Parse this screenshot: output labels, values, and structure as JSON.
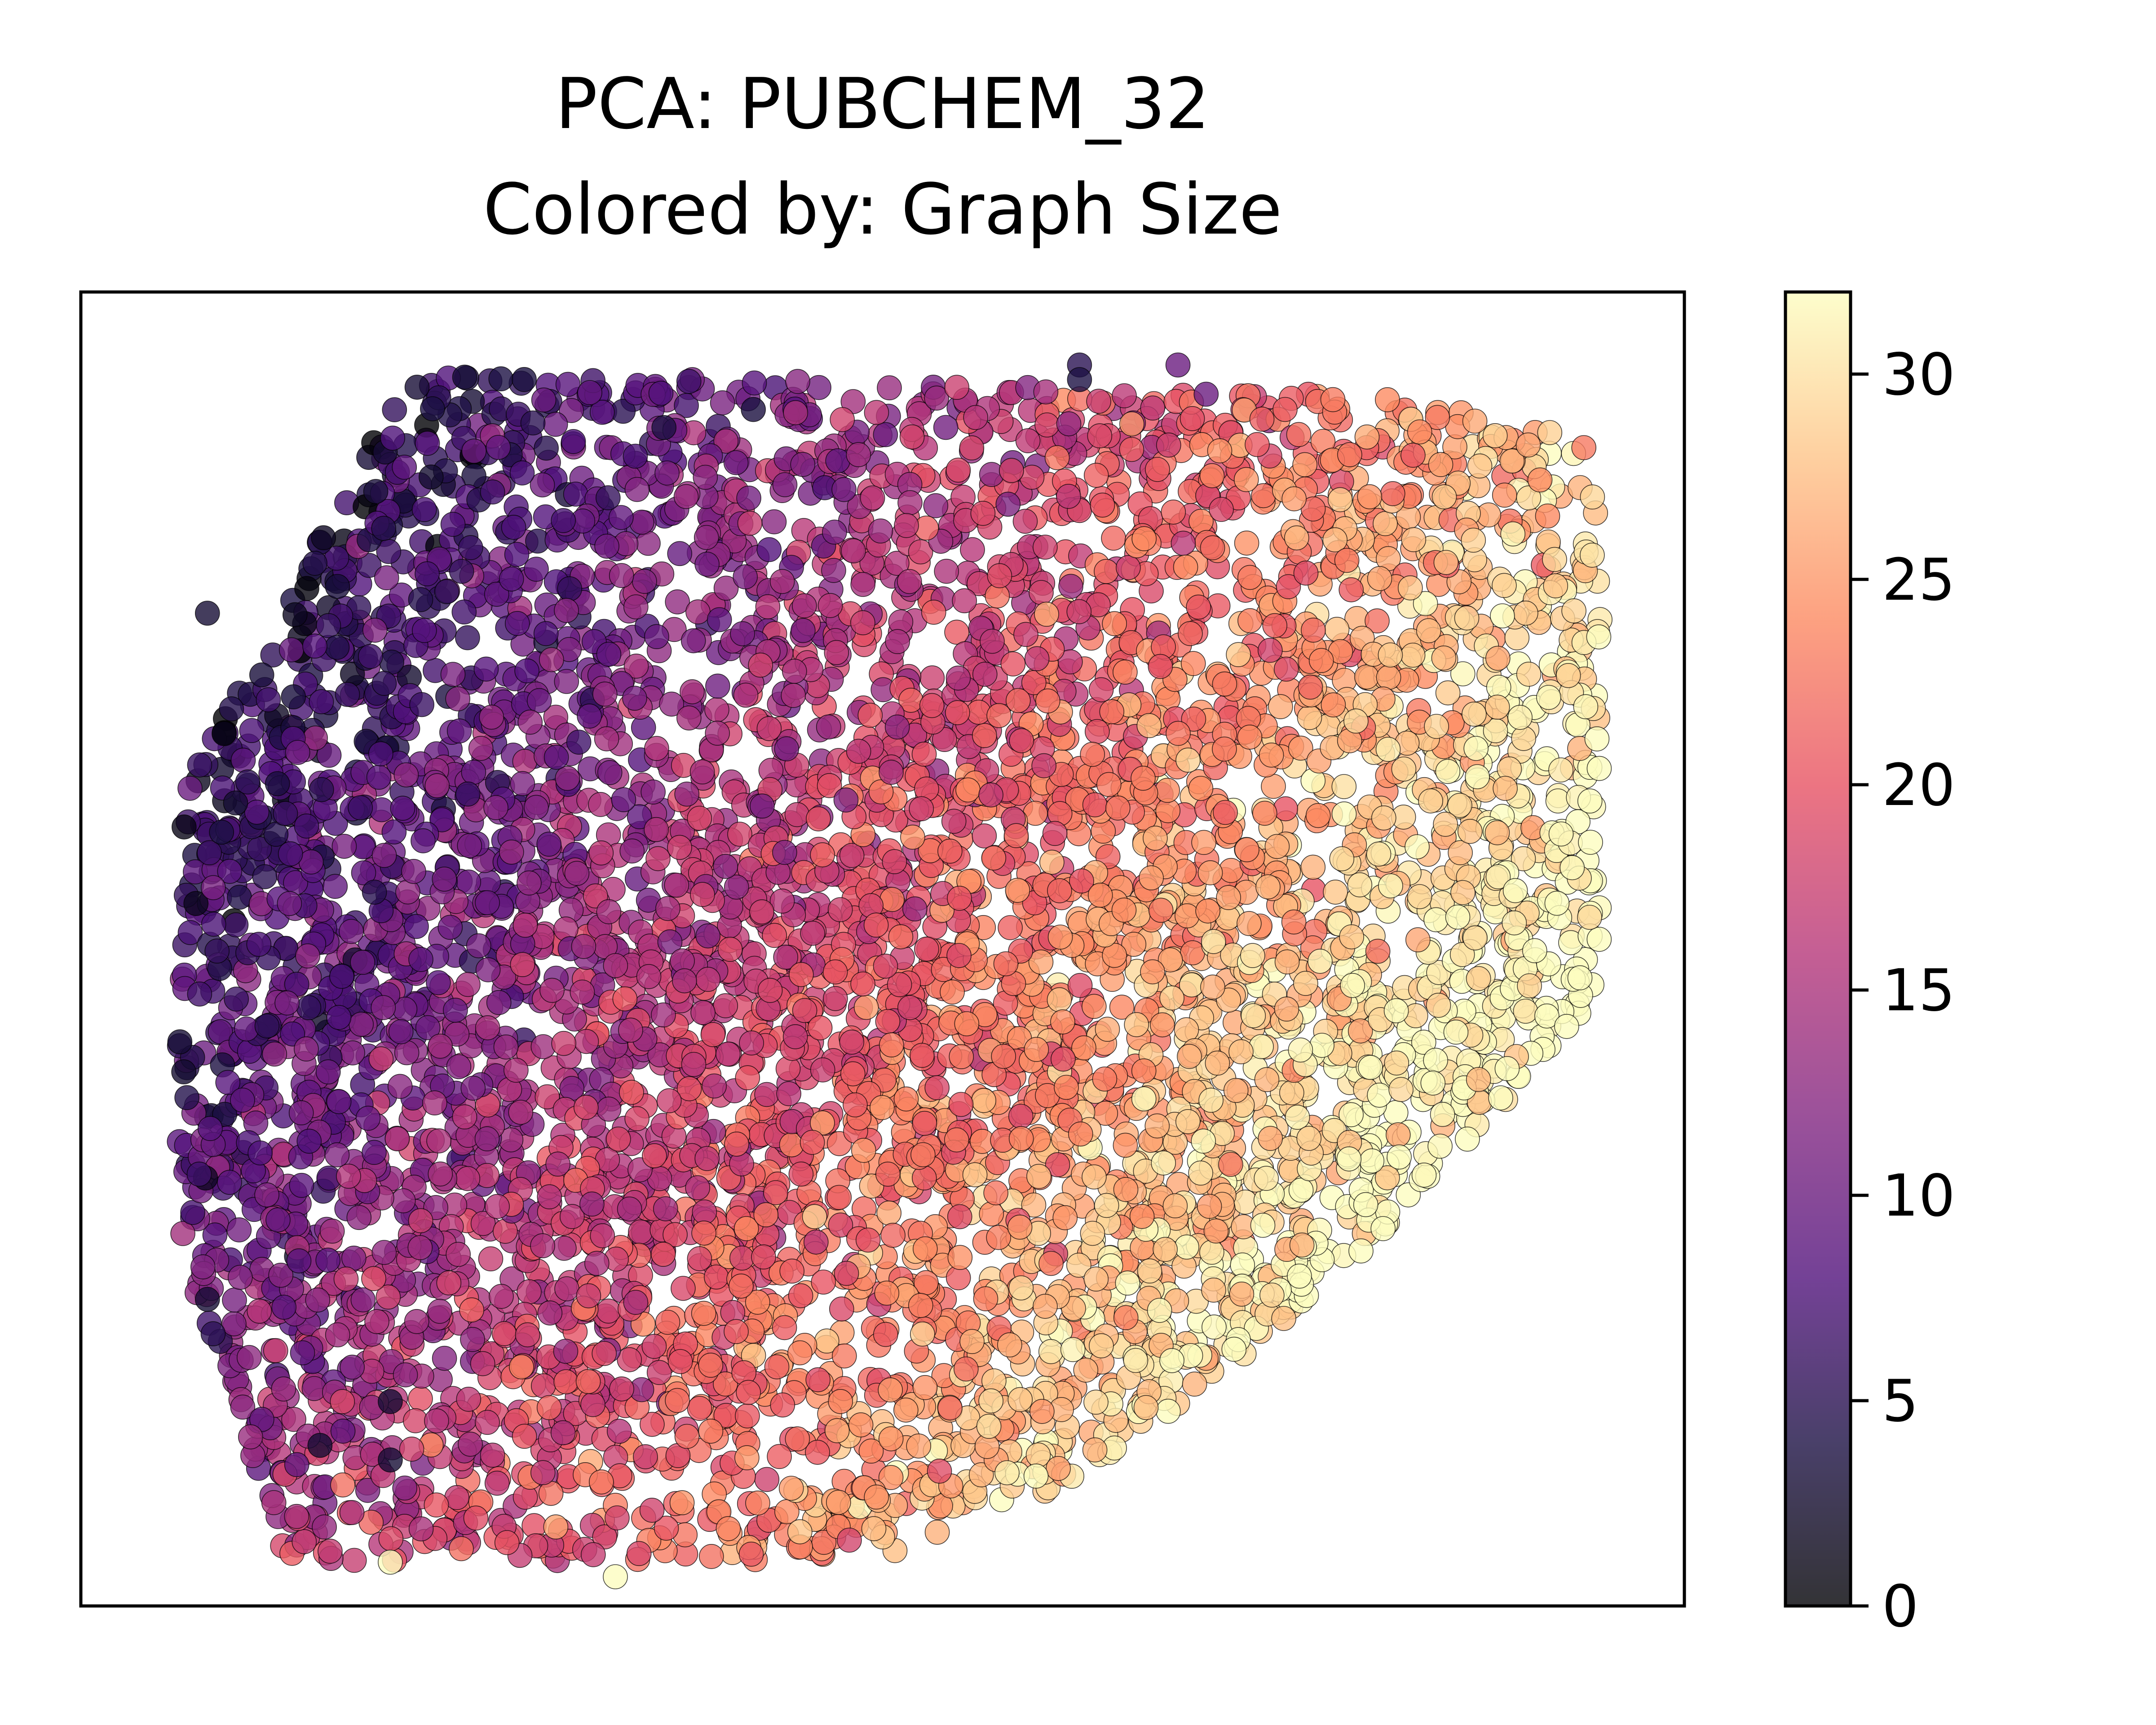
{
  "chart_data": {
    "type": "scatter",
    "title": "PCA: PUBCHEM_32",
    "subtitle": "Colored by: Graph Size",
    "xlabel": "",
    "ylabel": "",
    "x_ticks_shown": false,
    "y_ticks_shown": false,
    "xlim": [
      -4.2,
      7.2
    ],
    "ylim": [
      -4.0,
      5.0
    ],
    "colormap": "magma",
    "color_variable_range": [
      0,
      32
    ],
    "colorbar": {
      "ticks": [
        0,
        5,
        10,
        15,
        20,
        25,
        30
      ],
      "tick_labels": [
        "0",
        "5",
        "10",
        "15",
        "20",
        "25",
        "30"
      ],
      "placement": "right"
    },
    "point_count_approx": 6000,
    "marker": {
      "shape": "circle",
      "alpha": 0.8,
      "edge_color": "#000000"
    },
    "annotated_points": [
      {
        "x": 2.9,
        "y": 4.5,
        "graph_size": 5
      },
      {
        "x": 2.9,
        "y": 4.4,
        "graph_size": 4
      },
      {
        "x": 3.8,
        "y": 4.3,
        "graph_size": 10
      },
      {
        "x": 3.6,
        "y": 4.5,
        "graph_size": 10
      },
      {
        "x": -1.7,
        "y": 4.2,
        "graph_size": 4
      },
      {
        "x": -1.9,
        "y": 3.8,
        "graph_size": 9
      },
      {
        "x": -3.3,
        "y": 2.8,
        "graph_size": 3
      },
      {
        "x": -3.1,
        "y": 1.5,
        "graph_size": 3
      },
      {
        "x": -3.2,
        "y": 1.3,
        "graph_size": 4
      },
      {
        "x": -3.3,
        "y": -1.9,
        "graph_size": 3
      },
      {
        "x": -2.0,
        "y": -2.6,
        "graph_size": 3
      },
      {
        "x": -2.5,
        "y": -2.9,
        "graph_size": 3
      },
      {
        "x": -2.0,
        "y": -3.0,
        "graph_size": 3
      },
      {
        "x": 5.7,
        "y": 3.3,
        "graph_size": 29
      },
      {
        "x": 5.3,
        "y": 1.2,
        "graph_size": 32
      },
      {
        "x": -2.0,
        "y": -3.7,
        "graph_size": 32
      },
      {
        "x": -0.4,
        "y": -3.8,
        "graph_size": 32
      }
    ]
  }
}
